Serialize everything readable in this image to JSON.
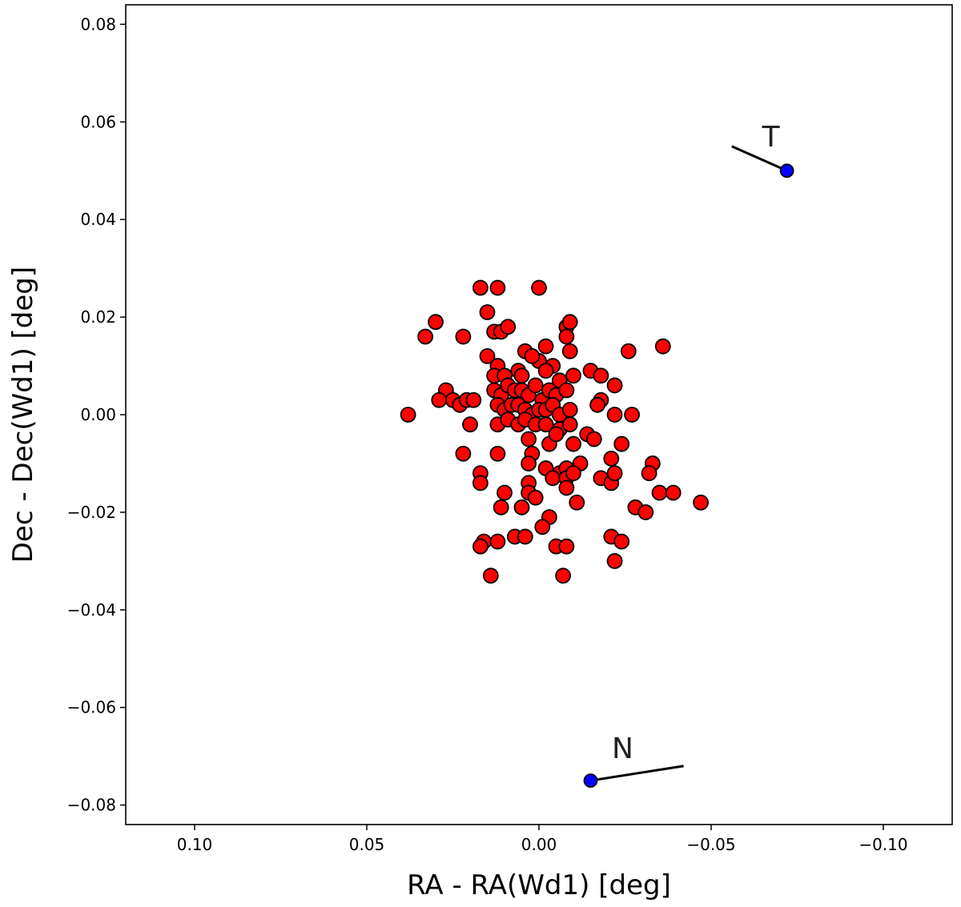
{
  "chart_data": {
    "type": "scatter",
    "title": "",
    "xlabel": "RA - RA(Wd1) [deg]",
    "ylabel": "Dec - Dec(Wd1) [deg]",
    "xlim": [
      0.12,
      -0.12
    ],
    "ylim": [
      -0.084,
      0.084
    ],
    "x_inverted": true,
    "grid": false,
    "x_ticks": [
      0.1,
      0.05,
      0.0,
      -0.05,
      -0.1
    ],
    "x_tick_labels": [
      "0.10",
      "0.05",
      "0.00",
      "−0.05",
      "−0.10"
    ],
    "y_ticks": [
      0.08,
      0.06,
      0.04,
      0.02,
      0.0,
      -0.02,
      -0.04,
      -0.06,
      -0.08
    ],
    "y_tick_labels": [
      "0.08",
      "0.06",
      "0.04",
      "0.02",
      "0.00",
      "−0.02",
      "−0.04",
      "−0.06",
      "−0.08"
    ],
    "colors": {
      "members": "#ff0000",
      "special": "#0000ff",
      "marker_edge": "#000000"
    },
    "series": [
      {
        "color": "#ff0000",
        "points": [
          [
            0.017,
            0.026
          ],
          [
            0.012,
            0.026
          ],
          [
            0.0,
            0.026
          ],
          [
            0.015,
            0.021
          ],
          [
            0.013,
            0.017
          ],
          [
            0.011,
            0.017
          ],
          [
            0.009,
            0.018
          ],
          [
            -0.008,
            0.018
          ],
          [
            -0.009,
            0.019
          ],
          [
            0.03,
            0.019
          ],
          [
            0.033,
            0.016
          ],
          [
            0.022,
            0.016
          ],
          [
            0.015,
            0.012
          ],
          [
            0.004,
            0.013
          ],
          [
            0.0,
            0.011
          ],
          [
            -0.002,
            0.014
          ],
          [
            -0.004,
            0.01
          ],
          [
            -0.008,
            0.016
          ],
          [
            -0.009,
            0.013
          ],
          [
            -0.026,
            0.013
          ],
          [
            -0.036,
            0.014
          ],
          [
            0.012,
            0.01
          ],
          [
            0.013,
            0.008
          ],
          [
            0.01,
            0.008
          ],
          [
            0.006,
            0.009
          ],
          [
            0.005,
            0.008
          ],
          [
            0.002,
            0.012
          ],
          [
            -0.002,
            0.009
          ],
          [
            -0.006,
            0.007
          ],
          [
            -0.01,
            0.008
          ],
          [
            -0.015,
            0.009
          ],
          [
            -0.018,
            0.008
          ],
          [
            -0.022,
            0.006
          ],
          [
            -0.018,
            0.003
          ],
          [
            0.013,
            0.005
          ],
          [
            0.011,
            0.004
          ],
          [
            0.009,
            0.006
          ],
          [
            0.007,
            0.005
          ],
          [
            0.005,
            0.005
          ],
          [
            0.003,
            0.004
          ],
          [
            0.001,
            0.006
          ],
          [
            -0.001,
            0.003
          ],
          [
            -0.003,
            0.005
          ],
          [
            -0.005,
            0.004
          ],
          [
            -0.008,
            0.005
          ],
          [
            0.012,
            0.002
          ],
          [
            0.01,
            0.001
          ],
          [
            0.008,
            0.002
          ],
          [
            0.006,
            0.002
          ],
          [
            0.004,
            0.001
          ],
          [
            0.002,
            0.0
          ],
          [
            0.0,
            0.001
          ],
          [
            -0.002,
            0.001
          ],
          [
            -0.004,
            0.002
          ],
          [
            -0.006,
            0.0
          ],
          [
            -0.009,
            0.001
          ],
          [
            -0.017,
            0.002
          ],
          [
            0.027,
            0.005
          ],
          [
            0.025,
            0.003
          ],
          [
            0.023,
            0.002
          ],
          [
            0.021,
            0.003
          ],
          [
            0.019,
            0.003
          ],
          [
            0.029,
            0.003
          ],
          [
            0.038,
            0.0
          ],
          [
            0.02,
            -0.002
          ],
          [
            0.012,
            -0.002
          ],
          [
            0.009,
            -0.001
          ],
          [
            0.006,
            -0.002
          ],
          [
            0.004,
            -0.001
          ],
          [
            0.001,
            -0.002
          ],
          [
            -0.002,
            -0.002
          ],
          [
            -0.006,
            -0.003
          ],
          [
            -0.009,
            -0.002
          ],
          [
            -0.014,
            -0.004
          ],
          [
            -0.022,
            0.0
          ],
          [
            -0.027,
            0.0
          ],
          [
            0.003,
            -0.005
          ],
          [
            0.002,
            -0.008
          ],
          [
            -0.003,
            -0.006
          ],
          [
            -0.005,
            -0.004
          ],
          [
            -0.01,
            -0.006
          ],
          [
            -0.016,
            -0.005
          ],
          [
            -0.024,
            -0.006
          ],
          [
            0.022,
            -0.008
          ],
          [
            0.012,
            -0.008
          ],
          [
            0.003,
            -0.01
          ],
          [
            -0.002,
            -0.011
          ],
          [
            -0.006,
            -0.012
          ],
          [
            -0.008,
            -0.011
          ],
          [
            -0.012,
            -0.01
          ],
          [
            -0.021,
            -0.009
          ],
          [
            0.017,
            -0.012
          ],
          [
            0.017,
            -0.014
          ],
          [
            0.003,
            -0.014
          ],
          [
            -0.004,
            -0.013
          ],
          [
            -0.008,
            -0.013
          ],
          [
            -0.01,
            -0.012
          ],
          [
            -0.018,
            -0.013
          ],
          [
            -0.021,
            -0.014
          ],
          [
            -0.022,
            -0.012
          ],
          [
            -0.033,
            -0.01
          ],
          [
            -0.032,
            -0.012
          ],
          [
            -0.035,
            -0.016
          ],
          [
            -0.039,
            -0.016
          ],
          [
            0.01,
            -0.016
          ],
          [
            0.003,
            -0.016
          ],
          [
            0.001,
            -0.017
          ],
          [
            -0.008,
            -0.015
          ],
          [
            0.011,
            -0.019
          ],
          [
            0.005,
            -0.019
          ],
          [
            -0.003,
            -0.021
          ],
          [
            -0.011,
            -0.018
          ],
          [
            -0.028,
            -0.019
          ],
          [
            -0.031,
            -0.02
          ],
          [
            -0.047,
            -0.018
          ],
          [
            0.016,
            -0.026
          ],
          [
            0.017,
            -0.027
          ],
          [
            0.012,
            -0.026
          ],
          [
            0.007,
            -0.025
          ],
          [
            0.004,
            -0.025
          ],
          [
            -0.001,
            -0.023
          ],
          [
            -0.005,
            -0.027
          ],
          [
            -0.008,
            -0.027
          ],
          [
            -0.021,
            -0.025
          ],
          [
            -0.024,
            -0.026
          ],
          [
            -0.022,
            -0.03
          ],
          [
            0.014,
            -0.033
          ],
          [
            -0.007,
            -0.033
          ]
        ]
      },
      {
        "color": "#0000ff",
        "points": [
          [
            -0.072,
            0.05
          ],
          [
            -0.015,
            -0.075
          ]
        ]
      }
    ],
    "annotations": [
      {
        "text": "T",
        "x": -0.072,
        "y": 0.05,
        "line_to": [
          -0.056,
          0.055
        ]
      },
      {
        "text": "N",
        "x": -0.015,
        "y": -0.075,
        "line_to": [
          -0.042,
          -0.072
        ]
      }
    ]
  }
}
